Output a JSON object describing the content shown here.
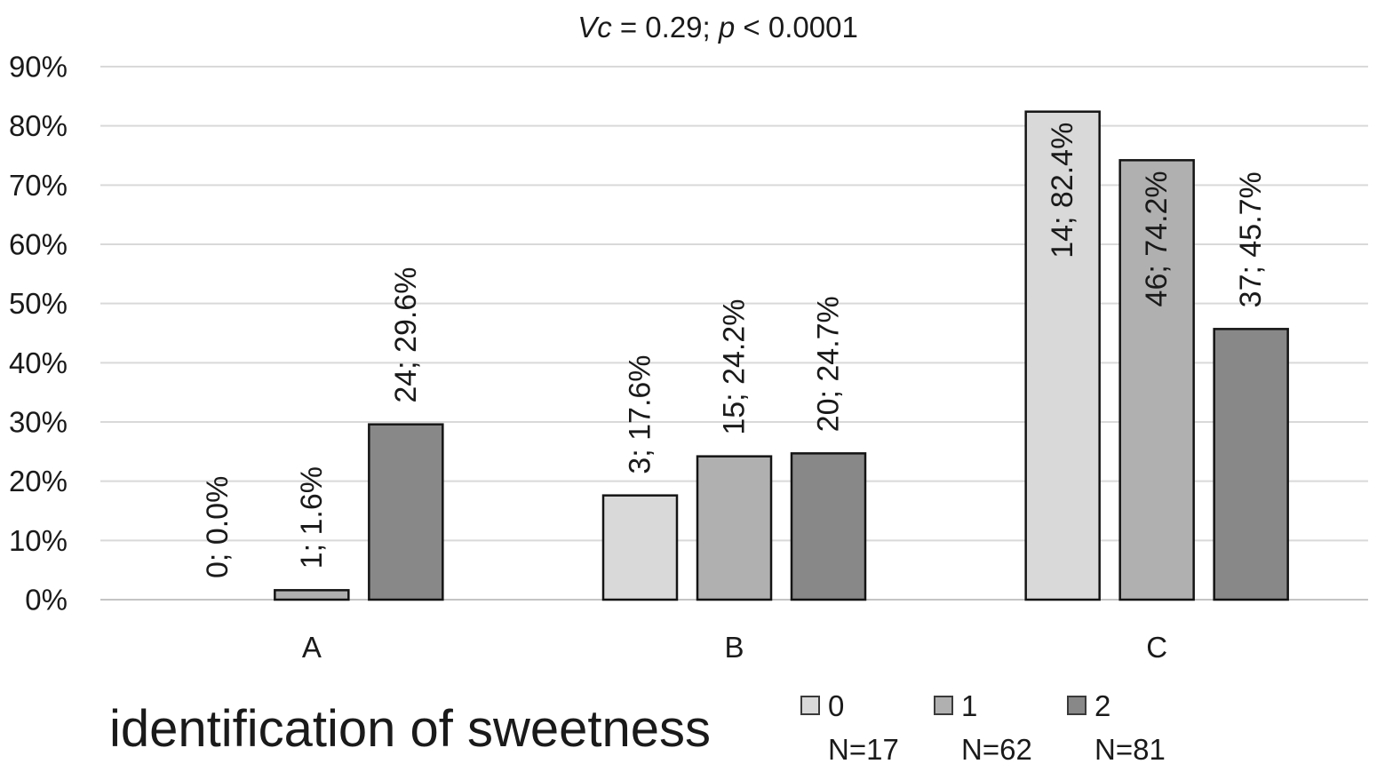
{
  "chart_data": {
    "type": "bar",
    "title_segments": [
      {
        "text": "Vc",
        "italic": true
      },
      {
        "text": " = 0.29; ",
        "italic": false
      },
      {
        "text": "p",
        "italic": true
      },
      {
        "text": " < 0.0001",
        "italic": false
      }
    ],
    "categories": [
      "A",
      "B",
      "C"
    ],
    "series": [
      {
        "name": "0",
        "n_label": "N=17",
        "color": "#d9d9d9",
        "values": [
          0.0,
          17.6,
          82.4
        ],
        "counts": [
          0,
          3,
          14
        ],
        "data_labels": [
          "0; 0.0%",
          "3; 17.6%",
          "14; 82.4%"
        ]
      },
      {
        "name": "1",
        "n_label": "N=62",
        "color": "#b0b0b0",
        "values": [
          1.6,
          24.2,
          74.2
        ],
        "counts": [
          1,
          15,
          46
        ],
        "data_labels": [
          "1; 1.6%",
          "15; 24.2%",
          "46; 74.2%"
        ]
      },
      {
        "name": "2",
        "n_label": "N=81",
        "color": "#888888",
        "values": [
          29.6,
          24.7,
          45.7
        ],
        "counts": [
          24,
          20,
          37
        ],
        "data_labels": [
          "24; 29.6%",
          "20; 24.7%",
          "37; 45.7%"
        ]
      }
    ],
    "ylim": [
      0,
      90
    ],
    "yticks": [
      0,
      10,
      20,
      30,
      40,
      50,
      60,
      70,
      80,
      90
    ],
    "ytick_labels": [
      "0%",
      "10%",
      "20%",
      "30%",
      "40%",
      "50%",
      "60%",
      "70%",
      "80%",
      "90%"
    ],
    "grid": true,
    "legend_title": "identification of sweetness",
    "legend_position": "bottom"
  }
}
